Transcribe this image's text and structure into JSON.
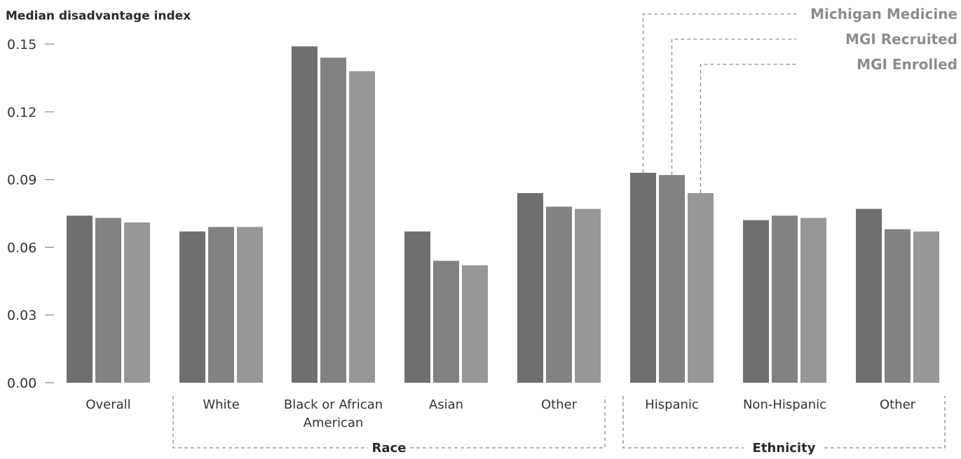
{
  "chart_data": {
    "type": "bar",
    "ylabel": "Median disadvantage index",
    "ylim": [
      0,
      0.15
    ],
    "yticks": [
      "0.00",
      "0.03",
      "0.06",
      "0.09",
      "0.12",
      "0.15"
    ],
    "categories": [
      "Overall",
      "White",
      "Black or African American",
      "Asian",
      "Other",
      "Hispanic",
      "Non-Hispanic",
      "Other"
    ],
    "series": [
      {
        "name": "Michigan Medicine",
        "color": "#6f6f6f",
        "values": [
          0.074,
          0.067,
          0.149,
          0.067,
          0.084,
          0.093,
          0.072,
          0.077
        ]
      },
      {
        "name": "MGI Recruited",
        "color": "#828282",
        "values": [
          0.073,
          0.069,
          0.144,
          0.054,
          0.078,
          0.092,
          0.074,
          0.068
        ]
      },
      {
        "name": "MGI Enrolled",
        "color": "#979797",
        "values": [
          0.071,
          0.069,
          0.138,
          0.052,
          0.077,
          0.084,
          0.073,
          0.067
        ]
      }
    ],
    "groups": [
      {
        "label": "Race",
        "categories": [
          "White",
          "Black or African American",
          "Asian",
          "Other"
        ]
      },
      {
        "label": "Ethnicity",
        "categories": [
          "Hispanic",
          "Non-Hispanic",
          "Other"
        ]
      }
    ],
    "legend_placement": "top-right, with dashed leader lines to the Hispanic bars",
    "grid": false
  }
}
